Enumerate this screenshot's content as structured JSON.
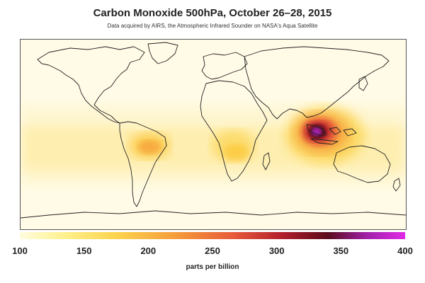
{
  "title": "Carbon Monoxide 500hPa, October 26–28, 2015",
  "subtitle": "Data acquired by AIRS, the Atmospheric Infrared Sounder on NASA's Aqua Satellite",
  "colorbar": {
    "ticks": [
      "100",
      "150",
      "200",
      "250",
      "300",
      "350",
      "400"
    ],
    "units": "parts per billion",
    "colors": [
      "#fffde0",
      "#fef08a",
      "#fcd34d",
      "#f59e3b",
      "#e85d3a",
      "#b3202b",
      "#5a0a1a",
      "#a020a8",
      "#e02ae6"
    ]
  },
  "map": {
    "background_color": "#fffbe6",
    "hotspots": [
      {
        "name": "Indonesia",
        "level_ppb": 400
      },
      {
        "name": "South America (Amazon)",
        "level_ppb": 200
      },
      {
        "name": "Central Africa",
        "level_ppb": 170
      }
    ]
  }
}
